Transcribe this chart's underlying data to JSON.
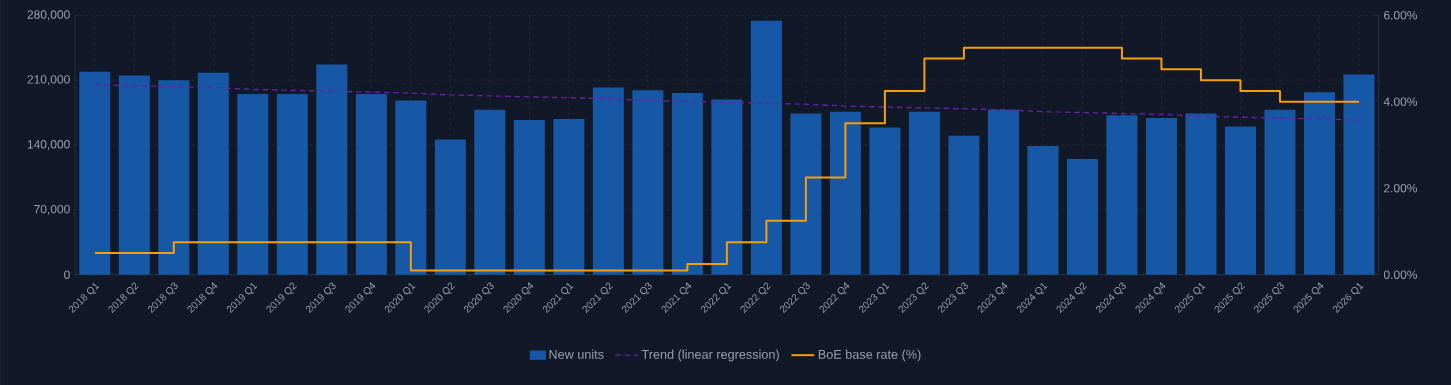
{
  "chart_data": {
    "type": "bar",
    "categories": [
      "2018 Q1",
      "2018 Q2",
      "2018 Q3",
      "2018 Q4",
      "2019 Q1",
      "2019 Q2",
      "2019 Q3",
      "2019 Q4",
      "2020 Q1",
      "2020 Q2",
      "2020 Q3",
      "2020 Q4",
      "2021 Q1",
      "2021 Q2",
      "2021 Q3",
      "2021 Q4",
      "2022 Q1",
      "2022 Q2",
      "2022 Q3",
      "2022 Q4",
      "2023 Q1",
      "2023 Q2",
      "2023 Q3",
      "2023 Q4",
      "2024 Q1",
      "2024 Q2",
      "2024 Q3",
      "2024 Q4",
      "2025 Q1",
      "2025 Q2",
      "2025 Q3",
      "2025 Q4",
      "2026 Q1"
    ],
    "series": [
      {
        "name": "New units",
        "color": "#1758a6",
        "values": [
          219000,
          215000,
          210000,
          218000,
          195000,
          195000,
          227000,
          195000,
          188000,
          146000,
          178000,
          167000,
          168000,
          202000,
          199000,
          196000,
          189000,
          274000,
          174000,
          176000,
          159000,
          176000,
          150000,
          178000,
          139000,
          125000,
          172000,
          169000,
          174000,
          160000,
          178000,
          197000,
          216000
        ]
      },
      {
        "name": "Trend (linear regression)",
        "type": "line",
        "color": "#6b21a8",
        "line_style": "dashed",
        "values": [
          205000,
          204000,
          203000,
          202000,
          200000,
          199000,
          198000,
          197000,
          196000,
          194000,
          193000,
          192000,
          191000,
          190000,
          188000,
          187000,
          186000,
          185000,
          184000,
          182000,
          181000,
          180000,
          179000,
          178000,
          176000,
          175000,
          174000,
          173000,
          171000,
          170000,
          169000,
          168000,
          167000
        ]
      },
      {
        "name": "BoE base rate (%)",
        "type": "step",
        "axis": "y2",
        "color": "#f59e0b",
        "values": [
          0.5,
          0.5,
          0.75,
          0.75,
          0.75,
          0.75,
          0.75,
          0.75,
          0.1,
          0.1,
          0.1,
          0.1,
          0.1,
          0.1,
          0.1,
          0.25,
          0.75,
          1.25,
          2.25,
          3.5,
          4.25,
          5.0,
          5.25,
          5.25,
          5.25,
          5.25,
          5.0,
          4.75,
          4.5,
          4.25,
          4.0,
          4.0,
          4.0
        ]
      }
    ],
    "ylim": [
      0,
      280000
    ],
    "yticks": [
      0,
      {
        "value": 70000,
        "label": "70,000"
      },
      {
        "value": 140000,
        "label": "140,000"
      },
      {
        "value": 210000,
        "label": "210,000"
      },
      {
        "value": 280000,
        "label": "280,000"
      }
    ],
    "y2lim": [
      0,
      6
    ],
    "y2ticks": [
      {
        "value": 0,
        "label": "0.00%"
      },
      {
        "value": 2,
        "label": "2.00%"
      },
      {
        "value": 4,
        "label": "4.00%"
      },
      {
        "value": 6,
        "label": "6.00%"
      }
    ],
    "grid": true,
    "legend": "bottom"
  }
}
